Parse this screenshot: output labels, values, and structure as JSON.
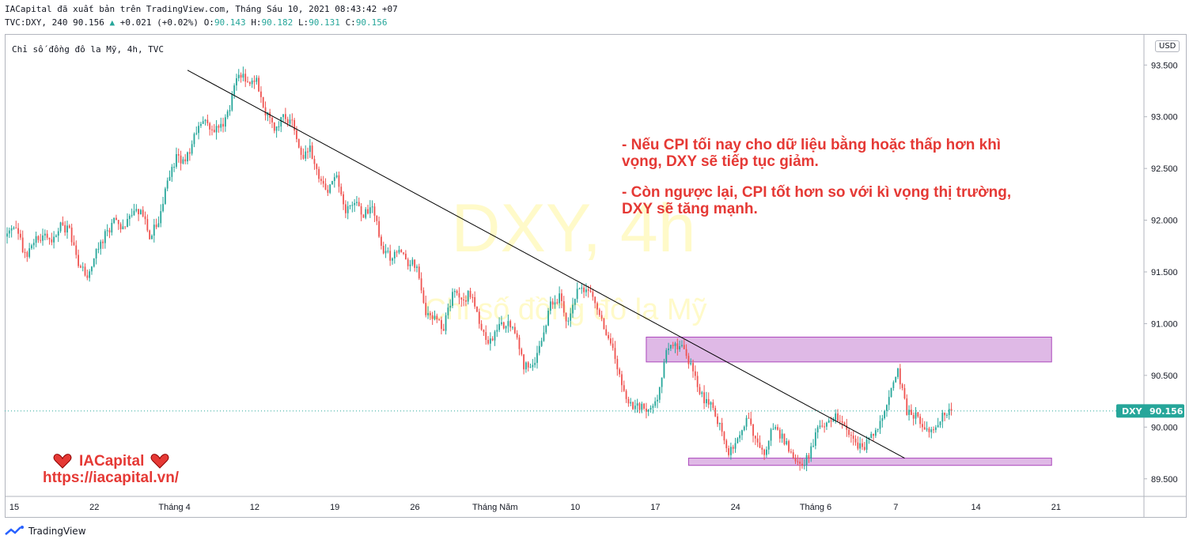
{
  "header": {
    "publish_line": "IACapital đã xuất bản trên TradingView.com, Tháng Sáu 10, 2021 08:43:42 +07",
    "symbol_line_prefix": "TVC:DXY, 240 90.156",
    "change_arrow": "▲",
    "change": "+0.021 (+0.02%)",
    "ohlc": [
      {
        "label": "O:",
        "value": "90.143"
      },
      {
        "label": "H:",
        "value": "90.182"
      },
      {
        "label": "L:",
        "value": "90.131"
      },
      {
        "label": "C:",
        "value": "90.156"
      }
    ]
  },
  "series_label": "Chỉ số đồng đô la Mỹ, 4h, TVC",
  "currency_button": "USD",
  "footer": {
    "brand": "TradingView"
  },
  "colors": {
    "up": "#26a69a",
    "down": "#ef5350",
    "trendline": "#000000",
    "zone": "#ce93d8",
    "annotation": "#e53935",
    "price_tag": "#26a69a"
  },
  "chart_data": {
    "type": "candlestick",
    "title": "",
    "ylabel": "",
    "ylim": [
      89.33,
      93.8
    ],
    "y_ticks": [
      "93.500",
      "93.000",
      "92.500",
      "92.000",
      "91.500",
      "91.000",
      "90.500",
      "90.000",
      "89.500"
    ],
    "x_ticks": [
      "15",
      "22",
      "Tháng 4",
      "12",
      "19",
      "26",
      "Tháng Năm",
      "10",
      "17",
      "24",
      "Tháng 6",
      "7",
      "14",
      "21"
    ],
    "last_price_label": "DXY",
    "last_price": "90.156",
    "watermark": {
      "symbol": "DXY, 4h",
      "name": "Chỉ số đồng đô la Mỹ"
    },
    "path_points": [
      [
        0,
        91.9
      ],
      [
        4,
        91.95
      ],
      [
        8,
        91.65
      ],
      [
        12,
        91.8
      ],
      [
        16,
        91.85
      ],
      [
        20,
        91.75
      ],
      [
        24,
        91.95
      ],
      [
        28,
        91.9
      ],
      [
        32,
        91.6
      ],
      [
        36,
        91.45
      ],
      [
        40,
        91.7
      ],
      [
        44,
        91.85
      ],
      [
        48,
        92.0
      ],
      [
        52,
        91.9
      ],
      [
        56,
        92.05
      ],
      [
        60,
        92.1
      ],
      [
        64,
        91.85
      ],
      [
        68,
        92.0
      ],
      [
        72,
        92.4
      ],
      [
        76,
        92.6
      ],
      [
        80,
        92.55
      ],
      [
        84,
        92.8
      ],
      [
        88,
        93.0
      ],
      [
        92,
        92.85
      ],
      [
        96,
        92.9
      ],
      [
        100,
        93.1
      ],
      [
        104,
        93.45
      ],
      [
        108,
        93.3
      ],
      [
        112,
        93.35
      ],
      [
        116,
        93.05
      ],
      [
        120,
        92.85
      ],
      [
        124,
        93.0
      ],
      [
        128,
        92.95
      ],
      [
        132,
        92.6
      ],
      [
        136,
        92.7
      ],
      [
        140,
        92.4
      ],
      [
        144,
        92.3
      ],
      [
        148,
        92.45
      ],
      [
        152,
        92.1
      ],
      [
        156,
        92.2
      ],
      [
        160,
        92.05
      ],
      [
        164,
        92.15
      ],
      [
        168,
        91.75
      ],
      [
        172,
        91.65
      ],
      [
        176,
        91.7
      ],
      [
        180,
        91.6
      ],
      [
        184,
        91.55
      ],
      [
        188,
        91.05
      ],
      [
        192,
        91.1
      ],
      [
        196,
        90.95
      ],
      [
        200,
        91.3
      ],
      [
        204,
        91.2
      ],
      [
        208,
        91.3
      ],
      [
        212,
        91.0
      ],
      [
        216,
        90.8
      ],
      [
        220,
        90.95
      ],
      [
        224,
        91.0
      ],
      [
        228,
        90.95
      ],
      [
        232,
        90.6
      ],
      [
        236,
        90.6
      ],
      [
        240,
        90.8
      ],
      [
        244,
        91.2
      ],
      [
        248,
        91.25
      ],
      [
        252,
        91.0
      ],
      [
        256,
        91.3
      ],
      [
        260,
        91.35
      ],
      [
        264,
        91.2
      ],
      [
        268,
        90.95
      ],
      [
        272,
        90.8
      ],
      [
        276,
        90.4
      ],
      [
        280,
        90.2
      ],
      [
        284,
        90.2
      ],
      [
        288,
        90.15
      ],
      [
        292,
        90.3
      ],
      [
        296,
        90.7
      ],
      [
        300,
        90.8
      ],
      [
        304,
        90.75
      ],
      [
        308,
        90.55
      ],
      [
        312,
        90.3
      ],
      [
        316,
        90.2
      ],
      [
        320,
        90.0
      ],
      [
        324,
        89.75
      ],
      [
        328,
        89.85
      ],
      [
        332,
        90.1
      ],
      [
        336,
        89.9
      ],
      [
        340,
        89.75
      ],
      [
        344,
        90.0
      ],
      [
        348,
        89.9
      ],
      [
        352,
        89.75
      ],
      [
        356,
        89.65
      ],
      [
        360,
        89.7
      ],
      [
        364,
        90.0
      ],
      [
        368,
        90.05
      ],
      [
        372,
        90.1
      ],
      [
        376,
        90.0
      ],
      [
        380,
        89.85
      ],
      [
        384,
        89.8
      ],
      [
        388,
        89.9
      ],
      [
        392,
        90.05
      ],
      [
        396,
        90.3
      ],
      [
        400,
        90.55
      ],
      [
        404,
        90.15
      ],
      [
        408,
        90.1
      ],
      [
        412,
        89.95
      ],
      [
        416,
        90.0
      ],
      [
        420,
        90.1
      ],
      [
        424,
        90.156
      ]
    ],
    "trendline": {
      "from": [
        81,
        93.45
      ],
      "to": [
        403,
        89.7
      ]
    },
    "zones": [
      {
        "x_from": 287,
        "x_to": 469,
        "y_from": 90.63,
        "y_to": 90.87
      },
      {
        "x_from": 306,
        "x_to": 469,
        "y_from": 89.63,
        "y_to": 89.7
      }
    ]
  },
  "annotations": {
    "note1_line1": "- Nếu CPI tối nay cho dữ liệu bằng hoặc thấp hơn khì",
    "note1_line2": "vọng, DXY sẽ tiếp tục giảm.",
    "note2_line1": "- Còn ngược lại, CPI tốt hơn so với kì vọng thị trường,",
    "note2_line2": "DXY sẽ tăng mạnh."
  },
  "branding": {
    "name": "IACapital",
    "url": "https://iacapital.vn/",
    "heart_icon": "heart-icon"
  }
}
